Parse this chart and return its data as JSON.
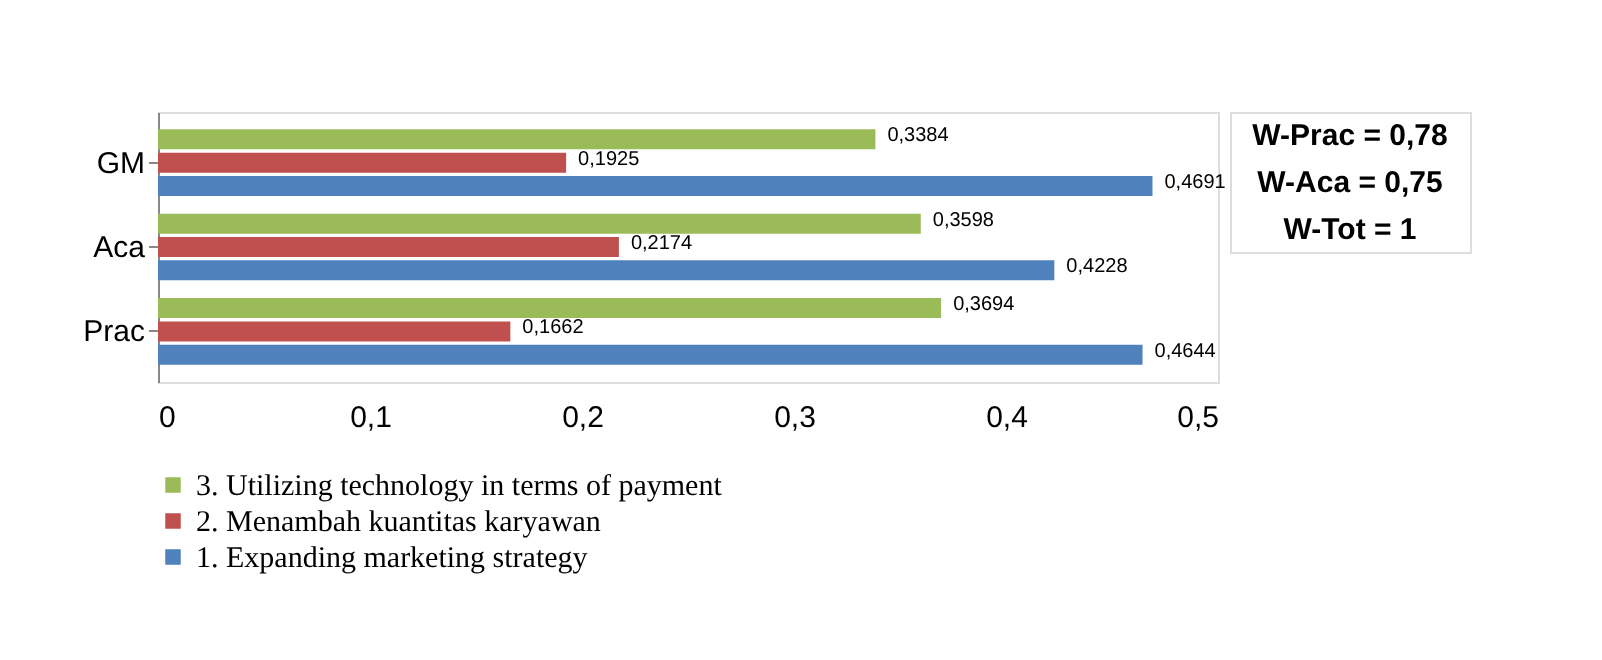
{
  "chart_data": {
    "type": "bar",
    "orientation": "horizontal",
    "categories": [
      "GM",
      "Aca",
      "Prac"
    ],
    "series": [
      {
        "name": "3. Utilizing technology in terms of payment",
        "color": "#9bbb59",
        "values": [
          0.3384,
          0.3598,
          0.3694
        ],
        "value_labels": [
          "0,3384",
          "0,3598",
          "0,3694"
        ]
      },
      {
        "name": "2. Menambah kuantitas karyawan",
        "color": "#c0504d",
        "values": [
          0.1925,
          0.2174,
          0.1662
        ],
        "value_labels": [
          "0,1925",
          "0,2174",
          "0,1662"
        ]
      },
      {
        "name": "1. Expanding marketing strategy",
        "color": "#4f81bd",
        "values": [
          0.4691,
          0.4228,
          0.4644
        ],
        "value_labels": [
          "0,4691",
          "0,4228",
          "0,4644"
        ]
      }
    ],
    "xlim": [
      0,
      0.5
    ],
    "xticks": [
      0,
      {
        "value": 0.1,
        "label": "0,1"
      },
      {
        "value": 0.2,
        "label": "0,2"
      },
      {
        "value": 0.3,
        "label": "0,3"
      },
      {
        "value": 0.4,
        "label": "0,4"
      },
      {
        "value": 0.5,
        "label": "0,5"
      }
    ],
    "grid": false,
    "legend": "bottom",
    "annotations": [
      "W-Prac = 0,78",
      "W-Aca = 0,75",
      "W-Tot = 1"
    ]
  }
}
